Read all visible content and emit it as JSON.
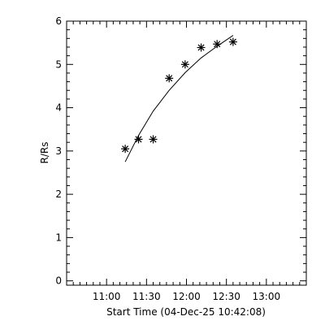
{
  "chart_data": {
    "type": "scatter",
    "xlabel": "Start Time (04-Dec-25 10:42:08)",
    "ylabel": "R/Rs",
    "xlim_minutes": [
      630,
      810
    ],
    "xticks": [
      {
        "minutes": 660,
        "label": "11:00"
      },
      {
        "minutes": 690,
        "label": "11:30"
      },
      {
        "minutes": 720,
        "label": "12:00"
      },
      {
        "minutes": 750,
        "label": "12:30"
      },
      {
        "minutes": 780,
        "label": "13:00"
      }
    ],
    "ylim": [
      -0.1,
      6
    ],
    "yticks": [
      {
        "value": 0,
        "label": "0"
      },
      {
        "value": 1,
        "label": "1"
      },
      {
        "value": 2,
        "label": "2"
      },
      {
        "value": 3,
        "label": "3"
      },
      {
        "value": 4,
        "label": "4"
      },
      {
        "value": 5,
        "label": "5"
      },
      {
        "value": 6,
        "label": "6"
      }
    ],
    "points": [
      {
        "time": "11:14",
        "minutes": 674,
        "r": 3.05
      },
      {
        "time": "11:24",
        "minutes": 684,
        "r": 3.27
      },
      {
        "time": "11:35",
        "minutes": 695,
        "r": 3.27
      },
      {
        "time": "11:47",
        "minutes": 707,
        "r": 4.68
      },
      {
        "time": "11:59",
        "minutes": 719,
        "r": 5.0
      },
      {
        "time": "12:11",
        "minutes": 731,
        "r": 5.39
      },
      {
        "time": "12:23",
        "minutes": 743,
        "r": 5.47
      },
      {
        "time": "12:35",
        "minutes": 755,
        "r": 5.52
      }
    ],
    "fit": [
      {
        "time": "11:14",
        "minutes": 674,
        "r": 2.75
      },
      {
        "time": "11:24",
        "minutes": 684,
        "r": 3.36
      },
      {
        "time": "11:35",
        "minutes": 695,
        "r": 3.92
      },
      {
        "time": "11:47",
        "minutes": 707,
        "r": 4.4
      },
      {
        "time": "11:59",
        "minutes": 719,
        "r": 4.81
      },
      {
        "time": "12:11",
        "minutes": 731,
        "r": 5.15
      },
      {
        "time": "12:23",
        "minutes": 743,
        "r": 5.42
      },
      {
        "time": "12:35",
        "minutes": 755,
        "r": 5.67
      }
    ],
    "marker": "asterisk",
    "fit_line": "solid",
    "grid": false,
    "legend": "none",
    "colors": {
      "axis": "#000000",
      "marker": "#000000",
      "line": "#000000",
      "background": "#ffffff"
    }
  }
}
